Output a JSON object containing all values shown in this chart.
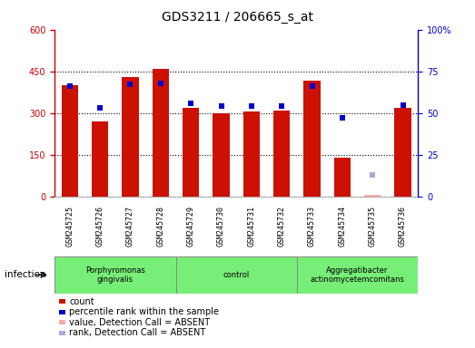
{
  "title": "GDS3211 / 206665_s_at",
  "samples": [
    "GSM245725",
    "GSM245726",
    "GSM245727",
    "GSM245728",
    "GSM245729",
    "GSM245730",
    "GSM245731",
    "GSM245732",
    "GSM245733",
    "GSM245734",
    "GSM245735",
    "GSM245736"
  ],
  "count_values": [
    400,
    270,
    430,
    460,
    320,
    300,
    305,
    310,
    415,
    140,
    5,
    320
  ],
  "rank_values": [
    66,
    53,
    67,
    68,
    56,
    54,
    54,
    54,
    66,
    47,
    13,
    55
  ],
  "absent_mask": [
    false,
    false,
    false,
    false,
    false,
    false,
    false,
    false,
    false,
    false,
    true,
    false
  ],
  "groups": [
    {
      "label": "Porphyromonas\ngingivalis",
      "start": 0,
      "end": 3,
      "color": "#77ee77"
    },
    {
      "label": "control",
      "start": 4,
      "end": 7,
      "color": "#77ee77"
    },
    {
      "label": "Aggregatibacter\nactinomycetemcomitans",
      "start": 8,
      "end": 11,
      "color": "#77ee77"
    }
  ],
  "group_infection_label": "infection",
  "left_ylim": [
    0,
    600
  ],
  "left_yticks": [
    0,
    150,
    300,
    450,
    600
  ],
  "right_ylim": [
    0,
    100
  ],
  "right_yticks": [
    0,
    25,
    50,
    75,
    100
  ],
  "right_yticklabels": [
    "0",
    "25",
    "50",
    "75",
    "100%"
  ],
  "bar_color": "#cc1100",
  "absent_bar_color": "#ffaaaa",
  "rank_color": "#0000cc",
  "absent_rank_color": "#aaaadd",
  "plot_bg_color": "#ffffff",
  "sample_bg_color": "#cccccc",
  "legend_items": [
    {
      "label": "count",
      "color": "#cc1100"
    },
    {
      "label": "percentile rank within the sample",
      "color": "#0000cc"
    },
    {
      "label": "value, Detection Call = ABSENT",
      "color": "#ffaaaa"
    },
    {
      "label": "rank, Detection Call = ABSENT",
      "color": "#aaaadd"
    }
  ]
}
